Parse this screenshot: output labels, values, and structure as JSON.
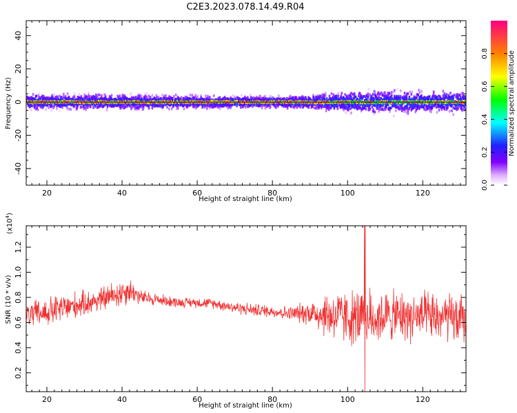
{
  "title": "C2E3.2023.078.14.49.R04",
  "colors": {
    "snr_line": "#f03030",
    "frame": "#000000"
  },
  "chart_data": [
    {
      "type": "heatmap",
      "xlabel": "Height of straight line (km)",
      "ylabel": "Frequency (Hz)",
      "xlim": [
        14.5,
        131.5
      ],
      "ylim": [
        -50,
        49
      ],
      "xticks": [
        "20",
        "40",
        "60",
        "80",
        "100",
        "120"
      ],
      "yticks": [
        "40",
        "20",
        "0",
        "-20",
        "-40"
      ],
      "grid": false,
      "colorbar": {
        "label": "Normalized spectral amplitude",
        "range": [
          0.0,
          1.0
        ],
        "ticks": [
          "0.0",
          "0.2",
          "0.4",
          "0.6",
          "0.8"
        ]
      },
      "bands": [
        {
          "x": [
            15,
            35,
            50,
            65,
            80,
            90,
            100,
            115,
            131
          ],
          "half_width_hz": [
            5.5,
            5.5,
            5,
            4.5,
            4,
            5,
            8,
            8,
            7.5
          ]
        }
      ],
      "centerline_hz": 0
    },
    {
      "type": "line",
      "xlabel": "Height of straight line (km)",
      "ylabel": "SNR (10 * v/v)",
      "y_multiplier": "(x10",
      "y_multiplier_exp": "4",
      "y_multiplier_close": ")",
      "xlim": [
        14.5,
        131.5
      ],
      "ylim": [
        0.05,
        1.37
      ],
      "xticks": [
        "20",
        "40",
        "60",
        "80",
        "100",
        "120"
      ],
      "yticks": [
        "1.2",
        "1.0",
        "0.8",
        "0.6",
        "0.4",
        "0.2"
      ],
      "grid": false,
      "series": [
        {
          "x": [
            15,
            20,
            25,
            30,
            35,
            40,
            42,
            45,
            50,
            55,
            60,
            65,
            70,
            75,
            80,
            85,
            90,
            95,
            100,
            105,
            110,
            115,
            120,
            125,
            131
          ],
          "values": [
            0.66,
            0.68,
            0.72,
            0.75,
            0.79,
            0.84,
            0.86,
            0.8,
            0.78,
            0.76,
            0.76,
            0.75,
            0.72,
            0.7,
            0.69,
            0.67,
            0.68,
            0.66,
            0.64,
            0.63,
            0.65,
            0.65,
            0.64,
            0.64,
            0.62
          ],
          "spread": [
            0.1,
            0.12,
            0.12,
            0.1,
            0.1,
            0.12,
            0.1,
            0.06,
            0.05,
            0.04,
            0.04,
            0.04,
            0.05,
            0.05,
            0.05,
            0.06,
            0.1,
            0.2,
            0.22,
            0.24,
            0.2,
            0.2,
            0.2,
            0.2,
            0.2
          ]
        }
      ]
    }
  ]
}
